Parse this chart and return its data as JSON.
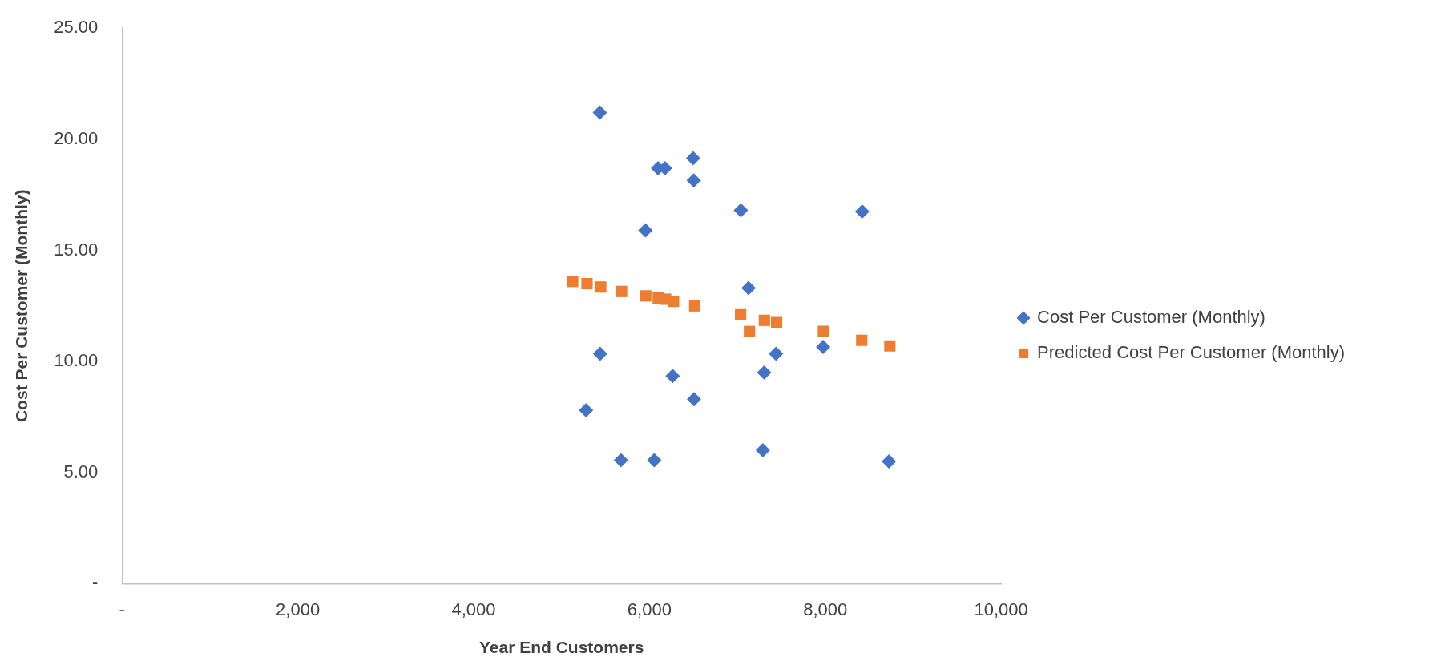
{
  "chart_data": {
    "type": "scatter",
    "xlabel": "Year End Customers",
    "ylabel": "Cost Per Customer (Monthly)",
    "xlim": [
      0,
      10000
    ],
    "ylim": [
      0,
      25
    ],
    "xticks": [
      {
        "value": 0,
        "label": "-"
      },
      {
        "value": 2000,
        "label": "2,000"
      },
      {
        "value": 4000,
        "label": "4,000"
      },
      {
        "value": 6000,
        "label": "6,000"
      },
      {
        "value": 8000,
        "label": "8,000"
      },
      {
        "value": 10000,
        "label": "10,000"
      }
    ],
    "yticks": [
      {
        "value": 0,
        "label": "-"
      },
      {
        "value": 5,
        "label": "5.00"
      },
      {
        "value": 10,
        "label": "10.00"
      },
      {
        "value": 15,
        "label": "15.00"
      },
      {
        "value": 20,
        "label": "20.00"
      },
      {
        "value": 25,
        "label": "25.00"
      }
    ],
    "grid": false,
    "legend": "right",
    "series": [
      {
        "name": "Cost Per Customer (Monthly)",
        "color": "#4472c4",
        "marker": "diamond",
        "x": [
          5436,
          6097,
          6177,
          6497,
          6504,
          7040,
          8421,
          5954,
          7127,
          5439,
          7440,
          7976,
          6264,
          7305,
          6507,
          5279,
          5676,
          6055,
          7290,
          8724
        ],
        "values": [
          21.2,
          18.7,
          18.7,
          19.15,
          18.15,
          16.8,
          16.75,
          15.9,
          13.3,
          10.35,
          10.35,
          10.65,
          9.35,
          9.5,
          8.3,
          7.8,
          5.55,
          5.55,
          6.0,
          5.5
        ]
      },
      {
        "name": "Predicted Cost Per Customer (Monthly)",
        "color": "#ed7d31",
        "marker": "square",
        "x": [
          5126,
          5290,
          5446,
          5683,
          5958,
          6100,
          6184,
          6274,
          6515,
          7037,
          7138,
          7308,
          7447,
          7979,
          8415,
          8735
        ],
        "values": [
          13.6,
          13.5,
          13.35,
          13.15,
          12.95,
          12.85,
          12.8,
          12.7,
          12.5,
          12.1,
          11.35,
          11.85,
          11.75,
          11.35,
          10.95,
          10.7
        ]
      }
    ]
  }
}
